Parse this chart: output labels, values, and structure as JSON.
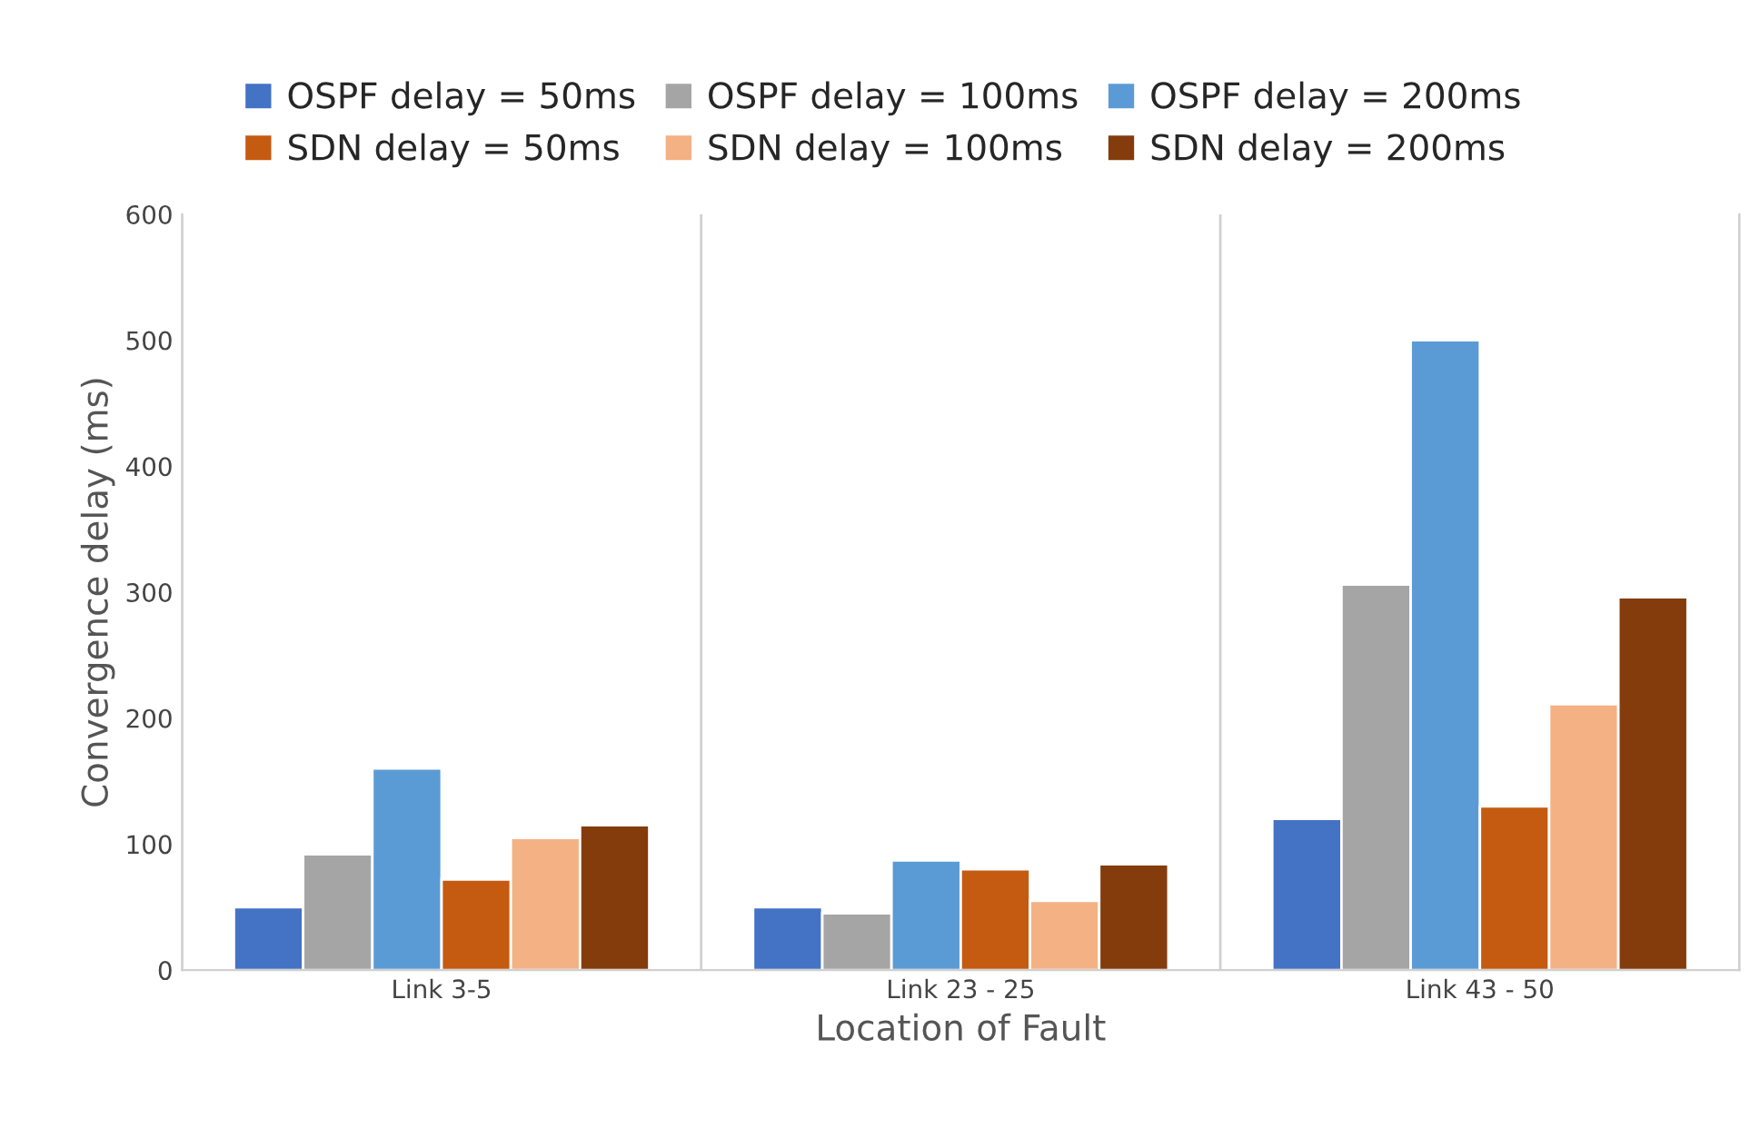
{
  "chart_data": {
    "type": "bar",
    "xlabel": "Location of Fault",
    "ylabel": "Convergence delay (ms)",
    "categories": [
      "Link 3-5",
      "Link 23 - 25",
      "Link 43 - 50"
    ],
    "series": [
      {
        "name": "OSPF delay = 50ms",
        "color": "#4472c4",
        "values": [
          50,
          50,
          120
        ]
      },
      {
        "name": "OSPF delay = 100ms",
        "color": "#a5a5a5",
        "values": [
          92,
          45,
          306
        ]
      },
      {
        "name": "OSPF delay = 200ms",
        "color": "#5b9bd5",
        "values": [
          160,
          87,
          500
        ]
      },
      {
        "name": "SDN delay = 50ms",
        "color": "#c55a11",
        "values": [
          72,
          80,
          130
        ]
      },
      {
        "name": "SDN delay = 100ms",
        "color": "#f4b183",
        "values": [
          105,
          55,
          211
        ]
      },
      {
        "name": "SDN delay = 200ms",
        "color": "#843c0c",
        "values": [
          115,
          84,
          296
        ]
      }
    ],
    "ylim": [
      0,
      600
    ],
    "yticks": [
      0,
      100,
      200,
      300,
      400,
      500,
      600
    ],
    "grid": "x",
    "legend": "top"
  }
}
